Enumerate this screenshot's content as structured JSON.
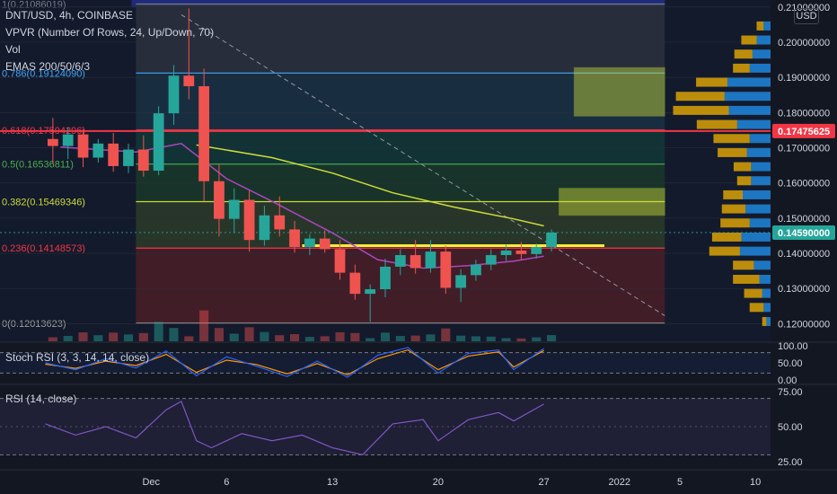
{
  "header": {
    "symbol": "DNT/USD, 4h, COINBASE",
    "vpvr": "VPVR (Number Of Rows, 24, Up/Down, 70)",
    "vol": "Vol",
    "emas": "EMAS 200/50/6/3"
  },
  "currency_button": "USD",
  "panes": {
    "stoch": "Stoch RSI (3, 3, 14, 14, close)",
    "rsi": "RSI (14, close)"
  },
  "colors": {
    "background": "#131722",
    "up": "#26a69a",
    "down": "#ef5350",
    "ema200": "#cddc39",
    "ema50": "#ab47bc",
    "fib_red": "#f23645",
    "rsi": "#7e57c2",
    "stoch_k": "#2962ff",
    "stoch_d": "#ff9800",
    "vpvr_up": "#2196f3",
    "vpvr_down": "#f5b400"
  },
  "chart_data": {
    "type": "candlestick",
    "pair": "DNT/USD",
    "interval": "4h",
    "exchange": "COINBASE",
    "price_axis": {
      "min": 0.115,
      "max": 0.212,
      "ticks": [
        "0.21000000",
        "0.20000000",
        "0.19000000",
        "0.18000000",
        "0.17000000",
        "0.16000000",
        "0.15000000",
        "0.14000000",
        "0.13000000",
        "0.12000000"
      ],
      "tick_values": [
        0.21,
        0.2,
        0.19,
        0.18,
        0.17,
        0.16,
        0.15,
        0.14,
        0.13,
        0.12
      ]
    },
    "x_axis": {
      "labels": [
        "Dec",
        "6",
        "13",
        "20",
        "27",
        "2022",
        "5",
        "10"
      ],
      "dates": [
        "2021-12-01",
        "2021-12-06",
        "2021-12-13",
        "2021-12-20",
        "2021-12-27",
        "2022-01-01",
        "2022-01-05",
        "2022-01-10"
      ]
    },
    "price_labels": [
      {
        "text": "0.17475625",
        "value": 0.17475625,
        "color": "#f23645"
      },
      {
        "text": "0.14590000",
        "value": 0.1459,
        "color": "#26a69a"
      }
    ],
    "fib_levels": [
      {
        "label": "1(0.21086019)",
        "value": 0.21086019,
        "color": "#787b86"
      },
      {
        "label": "0.786(0.19124090)",
        "value": 0.1912409,
        "color": "#42a5f5"
      },
      {
        "label": "0.618(0.17504296)",
        "value": 0.17504296,
        "color": "#f23645"
      },
      {
        "label": "0.5(0.16536811)",
        "value": 0.16536811,
        "color": "#4caf50"
      },
      {
        "label": "0.382(0.15469346)",
        "value": 0.15469346,
        "color": "#cddc39"
      },
      {
        "label": "0.236(0.14148573)",
        "value": 0.14148573,
        "color": "#f23645"
      },
      {
        "label": "0(0.12013623)",
        "value": 0.12013623,
        "color": "#9e9e9e"
      }
    ],
    "fib_range": {
      "start": "2021-11-30",
      "end": "2022-01-04"
    },
    "horizontal_lines": [
      {
        "value": 0.17475625,
        "color": "#f23645",
        "extends": "full"
      },
      {
        "value": 0.1422,
        "start": "2021-12-11",
        "end": "2021-12-31",
        "color": "#ffeb3b"
      }
    ],
    "trendline": {
      "start": {
        "date": "2021-12-03",
        "value": 0.2078
      },
      "end": {
        "date": "2022-01-04",
        "value": 0.1223
      }
    },
    "zones": [
      {
        "from": 0.179,
        "to": 0.1928,
        "start": "2021-12-29",
        "end": "2022-01-04",
        "color": "#cddc39"
      },
      {
        "from": 0.1508,
        "to": 0.1585,
        "start": "2021-12-28",
        "end": "2022-01-04",
        "color": "#cddc39"
      }
    ],
    "candles": [
      {
        "t": "2021-11-24",
        "o": 0.1725,
        "h": 0.1785,
        "l": 0.1655,
        "c": 0.1705
      },
      {
        "t": "2021-11-25",
        "o": 0.1705,
        "h": 0.1758,
        "l": 0.1668,
        "c": 0.1738
      },
      {
        "t": "2021-11-26",
        "o": 0.1738,
        "h": 0.1752,
        "l": 0.1645,
        "c": 0.1672
      },
      {
        "t": "2021-11-27",
        "o": 0.1672,
        "h": 0.1725,
        "l": 0.1658,
        "c": 0.1712
      },
      {
        "t": "2021-11-28",
        "o": 0.1712,
        "h": 0.1742,
        "l": 0.1632,
        "c": 0.1648
      },
      {
        "t": "2021-11-29",
        "o": 0.1648,
        "h": 0.1712,
        "l": 0.1628,
        "c": 0.1695
      },
      {
        "t": "2021-11-30",
        "o": 0.1695,
        "h": 0.1735,
        "l": 0.1618,
        "c": 0.1635
      },
      {
        "t": "2021-12-01",
        "o": 0.1635,
        "h": 0.1818,
        "l": 0.1622,
        "c": 0.1798
      },
      {
        "t": "2021-12-02",
        "o": 0.1798,
        "h": 0.1935,
        "l": 0.1765,
        "c": 0.1905
      },
      {
        "t": "2021-12-03",
        "o": 0.1905,
        "h": 0.2096,
        "l": 0.1838,
        "c": 0.1875
      },
      {
        "t": "2021-12-04",
        "o": 0.1875,
        "h": 0.1925,
        "l": 0.1548,
        "c": 0.1605
      },
      {
        "t": "2021-12-05",
        "o": 0.1605,
        "h": 0.1652,
        "l": 0.1448,
        "c": 0.1498
      },
      {
        "t": "2021-12-06",
        "o": 0.1498,
        "h": 0.1585,
        "l": 0.1458,
        "c": 0.1552
      },
      {
        "t": "2021-12-07",
        "o": 0.1552,
        "h": 0.1578,
        "l": 0.1405,
        "c": 0.1438
      },
      {
        "t": "2021-12-08",
        "o": 0.1438,
        "h": 0.1535,
        "l": 0.1422,
        "c": 0.1508
      },
      {
        "t": "2021-12-09",
        "o": 0.1508,
        "h": 0.1562,
        "l": 0.1448,
        "c": 0.1468
      },
      {
        "t": "2021-12-10",
        "o": 0.1468,
        "h": 0.1492,
        "l": 0.1402,
        "c": 0.1418
      },
      {
        "t": "2021-12-11",
        "o": 0.1418,
        "h": 0.1455,
        "l": 0.1395,
        "c": 0.1442
      },
      {
        "t": "2021-12-12",
        "o": 0.1442,
        "h": 0.1465,
        "l": 0.1402,
        "c": 0.1412
      },
      {
        "t": "2021-12-13",
        "o": 0.1412,
        "h": 0.1438,
        "l": 0.1325,
        "c": 0.1345
      },
      {
        "t": "2021-12-14",
        "o": 0.1345,
        "h": 0.1368,
        "l": 0.1268,
        "c": 0.1285
      },
      {
        "t": "2021-12-15",
        "o": 0.1285,
        "h": 0.1312,
        "l": 0.1205,
        "c": 0.1298
      },
      {
        "t": "2021-12-16",
        "o": 0.1298,
        "h": 0.1385,
        "l": 0.1275,
        "c": 0.1362
      },
      {
        "t": "2021-12-17",
        "o": 0.1362,
        "h": 0.1412,
        "l": 0.1338,
        "c": 0.1395
      },
      {
        "t": "2021-12-18",
        "o": 0.1395,
        "h": 0.1438,
        "l": 0.1342,
        "c": 0.1358
      },
      {
        "t": "2021-12-19",
        "o": 0.1358,
        "h": 0.1438,
        "l": 0.1345,
        "c": 0.1405
      },
      {
        "t": "2021-12-20",
        "o": 0.1405,
        "h": 0.1422,
        "l": 0.1285,
        "c": 0.1302
      },
      {
        "t": "2021-12-21",
        "o": 0.1302,
        "h": 0.1355,
        "l": 0.1262,
        "c": 0.1338
      },
      {
        "t": "2021-12-22",
        "o": 0.1338,
        "h": 0.1382,
        "l": 0.1322,
        "c": 0.1368
      },
      {
        "t": "2021-12-23",
        "o": 0.1368,
        "h": 0.1412,
        "l": 0.1352,
        "c": 0.1395
      },
      {
        "t": "2021-12-24",
        "o": 0.1395,
        "h": 0.1425,
        "l": 0.1378,
        "c": 0.1408
      },
      {
        "t": "2021-12-25",
        "o": 0.1408,
        "h": 0.1432,
        "l": 0.1382,
        "c": 0.1398
      },
      {
        "t": "2021-12-26",
        "o": 0.1398,
        "h": 0.1428,
        "l": 0.1385,
        "c": 0.1418
      },
      {
        "t": "2021-12-27",
        "o": 0.1418,
        "h": 0.1468,
        "l": 0.1405,
        "c": 0.1459
      }
    ],
    "ema200": [
      {
        "t": "2021-12-04",
        "v": 0.1708
      },
      {
        "t": "2021-12-09",
        "v": 0.1672
      },
      {
        "t": "2021-12-13",
        "v": 0.1628
      },
      {
        "t": "2021-12-17",
        "v": 0.1572
      },
      {
        "t": "2021-12-21",
        "v": 0.1532
      },
      {
        "t": "2021-12-25",
        "v": 0.1498
      },
      {
        "t": "2021-12-27",
        "v": 0.1478
      }
    ],
    "ema50": [
      {
        "t": "2021-11-25",
        "v": 0.1702
      },
      {
        "t": "2021-11-30",
        "v": 0.1688
      },
      {
        "t": "2021-12-03",
        "v": 0.1712
      },
      {
        "t": "2021-12-06",
        "v": 0.1612
      },
      {
        "t": "2021-12-09",
        "v": 0.1548
      },
      {
        "t": "2021-12-13",
        "v": 0.1458
      },
      {
        "t": "2021-12-16",
        "v": 0.1382
      },
      {
        "t": "2021-12-19",
        "v": 0.1358
      },
      {
        "t": "2021-12-22",
        "v": 0.1365
      },
      {
        "t": "2021-12-25",
        "v": 0.1378
      },
      {
        "t": "2021-12-27",
        "v": 0.1392
      }
    ],
    "vpvr_rows": [
      {
        "price": 0.2045,
        "up": 0.1,
        "down": 0.1
      },
      {
        "price": 0.2005,
        "up": 0.2,
        "down": 0.22
      },
      {
        "price": 0.1965,
        "up": 0.26,
        "down": 0.26
      },
      {
        "price": 0.1925,
        "up": 0.3,
        "down": 0.24
      },
      {
        "price": 0.1885,
        "up": 0.62,
        "down": 0.45
      },
      {
        "price": 0.1845,
        "up": 0.66,
        "down": 0.7
      },
      {
        "price": 0.1805,
        "up": 0.6,
        "down": 0.8
      },
      {
        "price": 0.1765,
        "up": 0.48,
        "down": 0.58
      },
      {
        "price": 0.1725,
        "up": 0.3,
        "down": 0.52
      },
      {
        "price": 0.1685,
        "up": 0.34,
        "down": 0.42
      },
      {
        "price": 0.1645,
        "up": 0.28,
        "down": 0.25
      },
      {
        "price": 0.1605,
        "up": 0.28,
        "down": 0.2
      },
      {
        "price": 0.1565,
        "up": 0.4,
        "down": 0.28
      },
      {
        "price": 0.1525,
        "up": 0.36,
        "down": 0.34
      },
      {
        "price": 0.1485,
        "up": 0.3,
        "down": 0.42
      },
      {
        "price": 0.1445,
        "up": 0.42,
        "down": 0.42
      },
      {
        "price": 0.1405,
        "up": 0.44,
        "down": 0.44
      },
      {
        "price": 0.1365,
        "up": 0.24,
        "down": 0.3
      },
      {
        "price": 0.1325,
        "up": 0.16,
        "down": 0.38
      },
      {
        "price": 0.1285,
        "up": 0.12,
        "down": 0.26
      },
      {
        "price": 0.1245,
        "up": 0.1,
        "down": 0.2
      },
      {
        "price": 0.1205,
        "up": 0.06,
        "down": 0.06
      }
    ],
    "stoch_rsi": {
      "ticks": [
        "100.00",
        "50.00",
        "0.00"
      ],
      "tick_values": [
        100,
        50,
        0
      ],
      "bands": [
        80,
        20
      ],
      "k": [
        {
          "t": "2021-11-24",
          "v": 50
        },
        {
          "t": "2021-11-26",
          "v": 30
        },
        {
          "t": "2021-11-28",
          "v": 62
        },
        {
          "t": "2021-11-30",
          "v": 35
        },
        {
          "t": "2021-12-02",
          "v": 85
        },
        {
          "t": "2021-12-04",
          "v": 12
        },
        {
          "t": "2021-12-06",
          "v": 68
        },
        {
          "t": "2021-12-08",
          "v": 40
        },
        {
          "t": "2021-12-10",
          "v": 10
        },
        {
          "t": "2021-12-12",
          "v": 55
        },
        {
          "t": "2021-12-14",
          "v": 8
        },
        {
          "t": "2021-12-16",
          "v": 72
        },
        {
          "t": "2021-12-18",
          "v": 95
        },
        {
          "t": "2021-12-20",
          "v": 20
        },
        {
          "t": "2021-12-22",
          "v": 78
        },
        {
          "t": "2021-12-24",
          "v": 88
        },
        {
          "t": "2021-12-25",
          "v": 30
        },
        {
          "t": "2021-12-27",
          "v": 92
        }
      ],
      "d": [
        {
          "t": "2021-11-24",
          "v": 46
        },
        {
          "t": "2021-11-26",
          "v": 34
        },
        {
          "t": "2021-11-28",
          "v": 55
        },
        {
          "t": "2021-11-30",
          "v": 42
        },
        {
          "t": "2021-12-02",
          "v": 75
        },
        {
          "t": "2021-12-04",
          "v": 22
        },
        {
          "t": "2021-12-06",
          "v": 58
        },
        {
          "t": "2021-12-08",
          "v": 45
        },
        {
          "t": "2021-12-10",
          "v": 18
        },
        {
          "t": "2021-12-12",
          "v": 48
        },
        {
          "t": "2021-12-14",
          "v": 15
        },
        {
          "t": "2021-12-16",
          "v": 62
        },
        {
          "t": "2021-12-18",
          "v": 88
        },
        {
          "t": "2021-12-20",
          "v": 30
        },
        {
          "t": "2021-12-22",
          "v": 70
        },
        {
          "t": "2021-12-24",
          "v": 82
        },
        {
          "t": "2021-12-25",
          "v": 38
        },
        {
          "t": "2021-12-27",
          "v": 86
        }
      ]
    },
    "rsi": {
      "ticks": [
        "75.00",
        "50.00",
        "25.00"
      ],
      "tick_values": [
        75,
        50,
        25
      ],
      "bands": [
        70,
        30
      ],
      "values": [
        {
          "t": "2021-11-24",
          "v": 52
        },
        {
          "t": "2021-11-26",
          "v": 44
        },
        {
          "t": "2021-11-28",
          "v": 50
        },
        {
          "t": "2021-11-30",
          "v": 42
        },
        {
          "t": "2021-12-02",
          "v": 62
        },
        {
          "t": "2021-12-03",
          "v": 68
        },
        {
          "t": "2021-12-04",
          "v": 40
        },
        {
          "t": "2021-12-05",
          "v": 35
        },
        {
          "t": "2021-12-07",
          "v": 45
        },
        {
          "t": "2021-12-09",
          "v": 40
        },
        {
          "t": "2021-12-11",
          "v": 44
        },
        {
          "t": "2021-12-13",
          "v": 35
        },
        {
          "t": "2021-12-15",
          "v": 30
        },
        {
          "t": "2021-12-17",
          "v": 52
        },
        {
          "t": "2021-12-19",
          "v": 55
        },
        {
          "t": "2021-12-20",
          "v": 40
        },
        {
          "t": "2021-12-22",
          "v": 55
        },
        {
          "t": "2021-12-24",
          "v": 60
        },
        {
          "t": "2021-12-25",
          "v": 54
        },
        {
          "t": "2021-12-27",
          "v": 66
        }
      ]
    }
  }
}
